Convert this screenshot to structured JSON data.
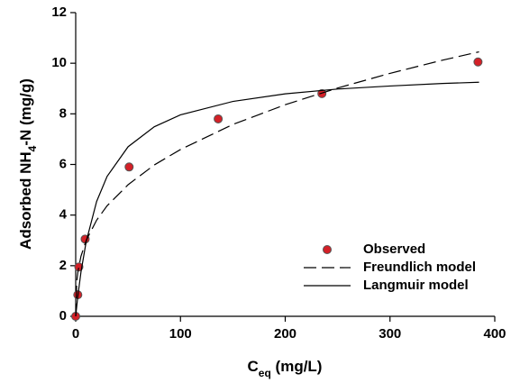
{
  "chart_data": {
    "type": "scatter",
    "xlabel_parts": [
      {
        "text": "C"
      },
      {
        "text": "eq",
        "sub": true
      },
      {
        "text": " (mg/L)"
      }
    ],
    "ylabel_parts": [
      {
        "text": "Adsorbed NH"
      },
      {
        "text": "4",
        "sub": true
      },
      {
        "text": "-N (mg/g)"
      }
    ],
    "xlim": [
      0,
      400
    ],
    "xticks": [
      0,
      100,
      200,
      300,
      400
    ],
    "ylim": [
      0,
      12
    ],
    "yticks": [
      0,
      2,
      4,
      6,
      8,
      10,
      12
    ],
    "legend": "lower right",
    "series": [
      {
        "name": "Observed",
        "type": "scatter",
        "color": "#d42027",
        "x": [
          0,
          2,
          3,
          9,
          51,
          136,
          235,
          384
        ],
        "values": [
          0,
          0.85,
          1.95,
          3.05,
          5.9,
          7.8,
          8.8,
          10.05
        ]
      },
      {
        "name": "Freundlich model",
        "type": "line",
        "style": "dashed",
        "color": "#000000",
        "x": [
          0,
          1,
          2,
          5,
          10,
          20,
          30,
          50,
          75,
          100,
          150,
          200,
          250,
          300,
          350,
          385
        ],
        "values": [
          0,
          1.37,
          1.73,
          2.37,
          3.0,
          3.8,
          4.37,
          5.2,
          5.98,
          6.59,
          7.58,
          8.36,
          9.02,
          9.6,
          10.12,
          10.45
        ]
      },
      {
        "name": "Langmuir model",
        "type": "line",
        "style": "solid",
        "color": "#000000",
        "x": [
          0,
          1,
          2,
          5,
          10,
          20,
          30,
          50,
          75,
          100,
          150,
          200,
          250,
          300,
          350,
          385
        ],
        "values": [
          0,
          0.4,
          0.78,
          1.74,
          2.95,
          4.54,
          5.53,
          6.7,
          7.49,
          7.96,
          8.49,
          8.79,
          8.98,
          9.1,
          9.2,
          9.25
        ]
      }
    ]
  }
}
